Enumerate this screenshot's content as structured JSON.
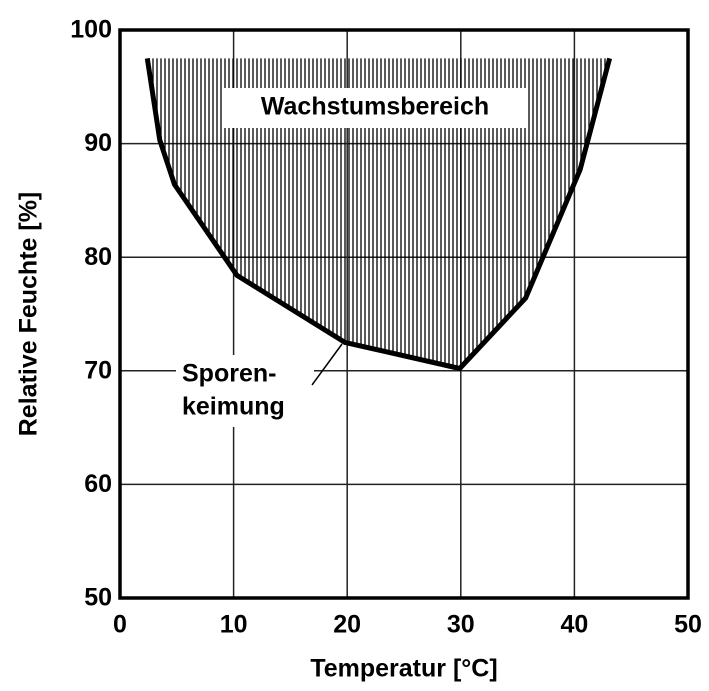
{
  "chart_data": {
    "type": "line",
    "xlabel": "Temperatur  [°C]",
    "ylabel": "Relative Feuchte  [%]",
    "x": [
      2.4,
      3.5,
      4.8,
      10.3,
      19.8,
      29.9,
      35.7,
      40.5,
      43.1
    ],
    "series": [
      {
        "name": "Sporenkeimung",
        "color": "#000000",
        "values": [
          97.5,
          90.3,
          86.4,
          78.4,
          72.5,
          70.2,
          76.4,
          87.7,
          97.5
        ]
      }
    ],
    "annotations": [
      "Wachstumsbereich",
      "Sporen-",
      "keimung"
    ],
    "xlim": [
      0,
      50
    ],
    "xticks": [
      0,
      10,
      20,
      30,
      40,
      50
    ],
    "ylim": [
      50,
      100
    ],
    "yticks": [
      50,
      60,
      70,
      80,
      90,
      100
    ],
    "grid": true
  }
}
